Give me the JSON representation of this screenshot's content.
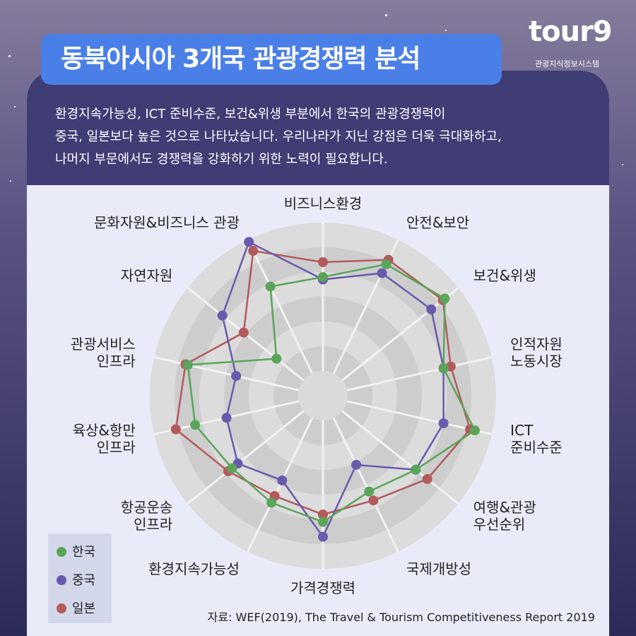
{
  "header": {
    "title": "동북아시아 3개국 관광경쟁력 분석",
    "logo": "tour9",
    "logo_subtitle": "관광지식정보시스템"
  },
  "description": [
    "환경지속가능성, ICT 준비수준, 보건&위생 부분에서 한국의 관광경쟁력이",
    "중국, 일본보다 높은 것으로 나타났습니다. 우리나라가 지닌 강점은 더욱 극대화하고,",
    "나머지 부문에서도 경쟁력을 강화하기 위한 노력이 필요합니다."
  ],
  "chart_data": {
    "type": "radar",
    "categories": [
      "비즈니스환경",
      "안전&보안",
      "보건&위생",
      "인적자원\n노동시장",
      "ICT\n준비수준",
      "여행&관광\n우선순위",
      "국제개방성",
      "가격경쟁력",
      "환경지속가능성",
      "항공운송\n인프라",
      "육상&항만\n인프라",
      "관광서비스\n인프라",
      "자연자원",
      "문화자원&비즈니스 관광"
    ],
    "series": [
      {
        "name": "한국",
        "color": "#5aa55a",
        "values": [
          4.8,
          5.9,
          6.3,
          5.0,
          6.3,
          4.8,
          4.3,
          5.1,
          4.8,
          4.7,
          5.3,
          5.6,
          2.4,
          4.9
        ]
      },
      {
        "name": "중국",
        "color": "#6a5aad",
        "values": [
          4.7,
          5.5,
          5.6,
          5.0,
          5.0,
          4.8,
          3.1,
          5.7,
          3.8,
          4.4,
          4.0,
          3.6,
          5.2,
          6.9
        ]
      },
      {
        "name": "일본",
        "color": "#b35a5a",
        "values": [
          5.4,
          6.1,
          6.2,
          5.3,
          6.1,
          5.4,
          4.7,
          4.8,
          4.5,
          4.9,
          6.1,
          5.7,
          4.1,
          6.5
        ]
      }
    ],
    "rlim": [
      0,
      7
    ],
    "rticks": [
      1,
      2,
      3,
      4,
      5,
      6,
      7
    ]
  },
  "source": "자료: WEF(2019), The Travel & Tourism Competitiveness Report 2019"
}
